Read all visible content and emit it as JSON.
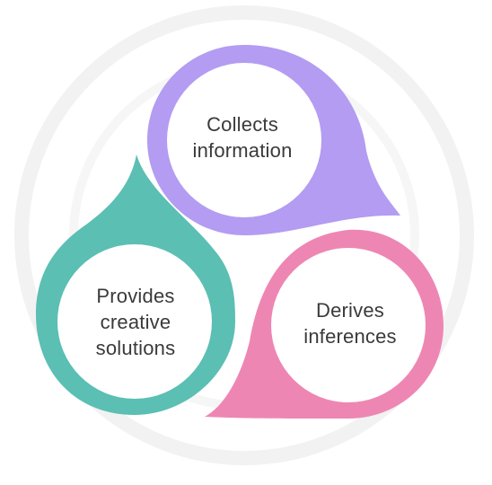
{
  "diagram": {
    "type": "cycle",
    "nodes": [
      {
        "id": "collects",
        "label": "Collects\ninformation",
        "color": "#b39cf2"
      },
      {
        "id": "derives",
        "label": "Derives\ninferences",
        "color": "#ee86b3"
      },
      {
        "id": "provides",
        "label": "Provides\ncreative\nsolutions",
        "color": "#5bbfb3"
      }
    ],
    "order": [
      "collects",
      "derives",
      "provides"
    ]
  },
  "watermark": {
    "color": "#f1f1f1"
  }
}
